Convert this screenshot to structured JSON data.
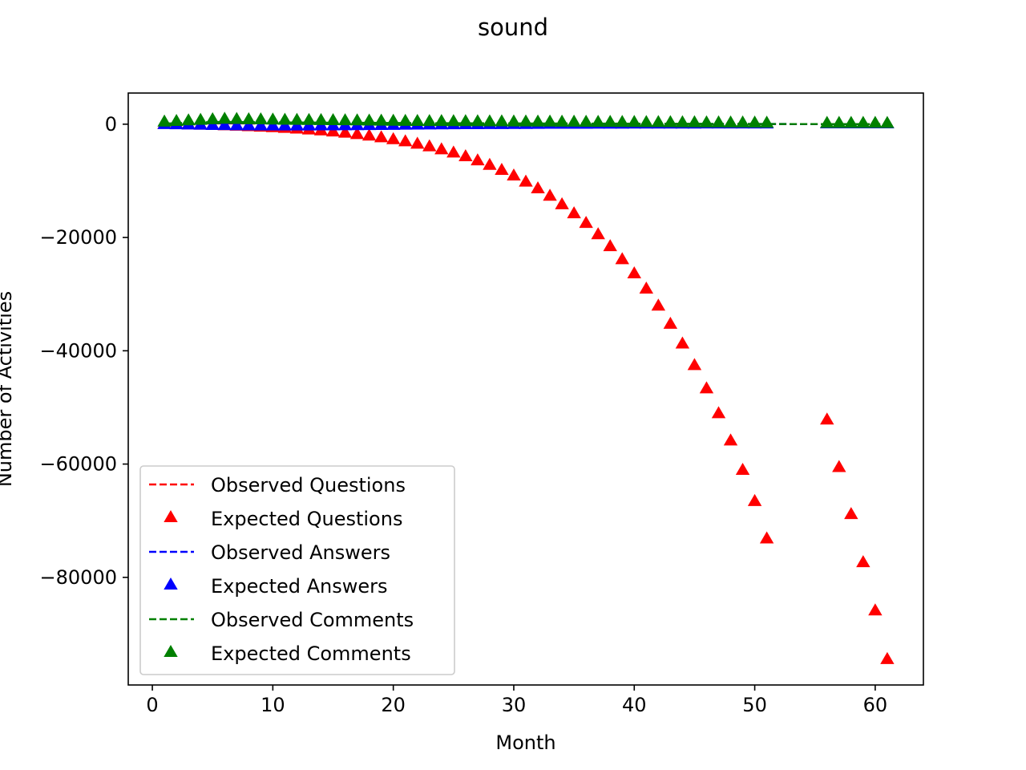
{
  "chart_data": {
    "type": "scatter",
    "title": "sound",
    "xlabel": "Month",
    "ylabel": "Number of Activities",
    "xlim": [
      -2,
      64
    ],
    "ylim": [
      -99000,
      5500
    ],
    "xticks": [
      0,
      10,
      20,
      30,
      40,
      50,
      60
    ],
    "yticks": [
      0,
      -20000,
      -40000,
      -60000,
      -80000
    ],
    "ytick_labels": [
      "0",
      "−20000",
      "−40000",
      "−60000",
      "−80000"
    ],
    "legend_position": "lower-left",
    "series": [
      {
        "name": "Observed Questions",
        "color": "#ff0000",
        "style": "dashed-line",
        "x": [
          1,
          2,
          3,
          4,
          5,
          6,
          7,
          8,
          9,
          10,
          11,
          12,
          13,
          14,
          15,
          16,
          17,
          18,
          19,
          20,
          21,
          22,
          23,
          24,
          25,
          26,
          27,
          28,
          29,
          30,
          31,
          32,
          33,
          34,
          35,
          36,
          37,
          38,
          39,
          40,
          41,
          42,
          43,
          44,
          45,
          46,
          47,
          48,
          49,
          50,
          51,
          56,
          57,
          58,
          59,
          60,
          61
        ],
        "y": [
          60,
          90,
          110,
          130,
          140,
          140,
          130,
          120,
          120,
          110,
          100,
          100,
          95,
          90,
          90,
          85,
          80,
          80,
          75,
          70,
          70,
          65,
          60,
          60,
          60,
          55,
          55,
          50,
          50,
          50,
          45,
          45,
          45,
          40,
          40,
          40,
          40,
          35,
          35,
          35,
          30,
          30,
          30,
          30,
          25,
          25,
          25,
          25,
          20,
          20,
          20,
          15,
          15,
          15,
          15,
          15,
          10
        ]
      },
      {
        "name": "Expected Questions",
        "color": "#ff0000",
        "style": "triangle-marker",
        "x": [
          1,
          2,
          3,
          4,
          5,
          6,
          7,
          8,
          9,
          10,
          11,
          12,
          13,
          14,
          15,
          16,
          17,
          18,
          19,
          20,
          21,
          22,
          23,
          24,
          25,
          26,
          27,
          28,
          29,
          30,
          31,
          32,
          33,
          34,
          35,
          36,
          37,
          38,
          39,
          40,
          41,
          42,
          43,
          44,
          45,
          46,
          47,
          48,
          49,
          50,
          51,
          56,
          57,
          58,
          59,
          60,
          61
        ],
        "y": [
          -100,
          -150,
          -200,
          -250,
          -300,
          -360,
          -430,
          -510,
          -600,
          -700,
          -820,
          -950,
          -1100,
          -1270,
          -1460,
          -1670,
          -1910,
          -2180,
          -2480,
          -2820,
          -3190,
          -3610,
          -4080,
          -4600,
          -5180,
          -5830,
          -6550,
          -7350,
          -8240,
          -9220,
          -10300,
          -11500,
          -12800,
          -14300,
          -15900,
          -17600,
          -19600,
          -21700,
          -24000,
          -26500,
          -29200,
          -32200,
          -35400,
          -38900,
          -42700,
          -46800,
          -51200,
          -56000,
          -61200,
          -66700,
          -73300,
          -52300,
          -60700,
          -69000,
          -77500,
          -86000,
          -94600
        ]
      },
      {
        "name": "Observed Answers",
        "color": "#0000ff",
        "style": "dashed-line",
        "x": [
          1,
          2,
          3,
          4,
          5,
          6,
          7,
          8,
          9,
          10,
          11,
          12,
          13,
          14,
          15,
          16,
          17,
          18,
          19,
          20,
          21,
          22,
          23,
          24,
          25,
          26,
          27,
          28,
          29,
          30,
          31,
          32,
          33,
          34,
          35,
          36,
          37,
          38,
          39,
          40,
          41,
          42,
          43,
          44,
          45,
          46,
          47,
          48,
          49,
          50,
          51,
          56,
          57,
          58,
          59,
          60,
          61
        ],
        "y": [
          80,
          120,
          150,
          170,
          180,
          180,
          170,
          160,
          150,
          140,
          130,
          120,
          115,
          110,
          105,
          100,
          95,
          90,
          85,
          80,
          80,
          75,
          70,
          70,
          65,
          65,
          60,
          60,
          55,
          55,
          55,
          50,
          50,
          50,
          45,
          45,
          45,
          45,
          40,
          40,
          40,
          40,
          35,
          35,
          35,
          35,
          30,
          30,
          30,
          30,
          30,
          20,
          20,
          20,
          20,
          15,
          15
        ]
      },
      {
        "name": "Expected Answers",
        "color": "#0000ff",
        "style": "triangle-marker",
        "x": [
          1,
          2,
          3,
          4,
          5,
          6,
          7,
          8,
          9,
          10,
          11,
          12,
          13,
          14,
          15,
          16,
          17,
          18,
          19,
          20,
          21,
          22,
          23,
          24,
          25,
          26,
          27,
          28,
          29,
          30,
          31,
          32,
          33,
          34,
          35,
          36,
          37,
          38,
          39,
          40,
          41,
          42,
          43,
          44,
          45,
          46,
          47,
          48,
          49,
          50,
          51,
          56,
          57,
          58,
          59,
          60,
          61
        ],
        "y": [
          -150,
          -180,
          -220,
          -260,
          -300,
          -330,
          -360,
          -380,
          -390,
          -400,
          -400,
          -400,
          -390,
          -380,
          -370,
          -360,
          -340,
          -320,
          -300,
          -280,
          -260,
          -240,
          -220,
          -200,
          -180,
          -170,
          -160,
          -150,
          -140,
          -130,
          -120,
          -110,
          -100,
          -95,
          -90,
          -85,
          -80,
          -75,
          -70,
          -65,
          -60,
          -58,
          -55,
          -52,
          -50,
          -48,
          -46,
          -44,
          -42,
          -40,
          -38,
          -30,
          -28,
          -26,
          -24,
          -22,
          -20
        ]
      },
      {
        "name": "Observed Comments",
        "color": "#008000",
        "style": "dashed-line",
        "x": [
          1,
          2,
          3,
          4,
          5,
          6,
          7,
          8,
          9,
          10,
          11,
          12,
          13,
          14,
          15,
          16,
          17,
          18,
          19,
          20,
          21,
          22,
          23,
          24,
          25,
          26,
          27,
          28,
          29,
          30,
          31,
          32,
          33,
          34,
          35,
          36,
          37,
          38,
          39,
          40,
          41,
          42,
          43,
          44,
          45,
          46,
          47,
          48,
          49,
          50,
          51,
          56,
          57,
          58,
          59,
          60,
          61
        ],
        "y": [
          100,
          180,
          260,
          330,
          380,
          400,
          390,
          370,
          350,
          330,
          310,
          300,
          290,
          280,
          270,
          260,
          250,
          240,
          230,
          220,
          210,
          200,
          190,
          180,
          170,
          165,
          160,
          155,
          150,
          145,
          140,
          135,
          130,
          125,
          120,
          115,
          110,
          105,
          100,
          95,
          90,
          85,
          80,
          75,
          70,
          65,
          60,
          55,
          50,
          45,
          40,
          20,
          20,
          20,
          20,
          15,
          15
        ]
      },
      {
        "name": "Expected Comments",
        "color": "#008000",
        "style": "triangle-marker",
        "x": [
          1,
          2,
          3,
          4,
          5,
          6,
          7,
          8,
          9,
          10,
          11,
          12,
          13,
          14,
          15,
          16,
          17,
          18,
          19,
          20,
          21,
          22,
          23,
          24,
          25,
          26,
          27,
          28,
          29,
          30,
          31,
          32,
          33,
          34,
          35,
          36,
          37,
          38,
          39,
          40,
          41,
          42,
          43,
          44,
          45,
          46,
          47,
          48,
          49,
          50,
          51,
          56,
          57,
          58,
          59,
          60,
          61
        ],
        "y": [
          300,
          400,
          500,
          600,
          700,
          800,
          750,
          700,
          680,
          650,
          620,
          600,
          580,
          560,
          540,
          520,
          500,
          480,
          460,
          440,
          420,
          400,
          390,
          380,
          370,
          360,
          350,
          340,
          330,
          320,
          310,
          300,
          290,
          280,
          270,
          260,
          250,
          240,
          230,
          220,
          210,
          200,
          190,
          180,
          170,
          160,
          150,
          140,
          130,
          120,
          110,
          70,
          70,
          60,
          60,
          60,
          50
        ]
      }
    ]
  }
}
